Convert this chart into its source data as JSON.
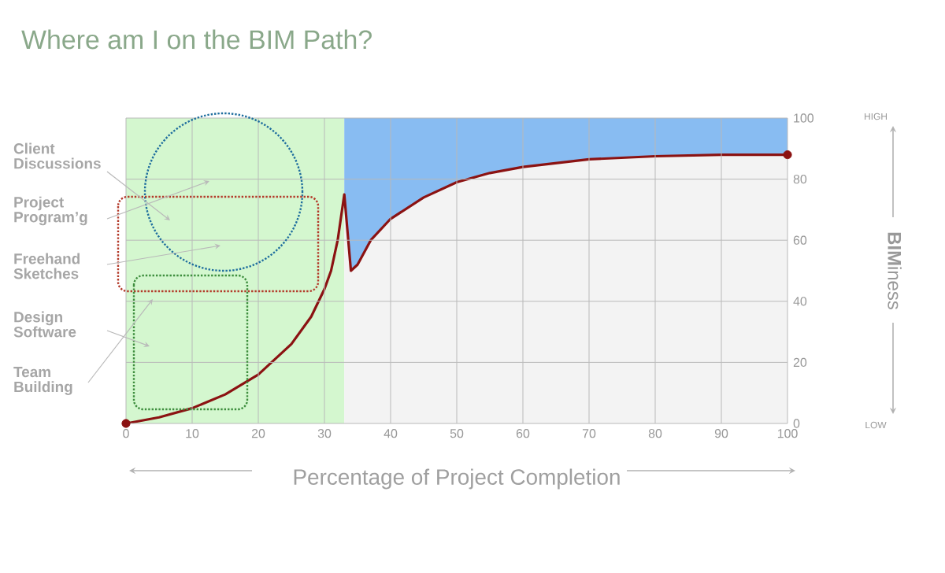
{
  "chart_data": {
    "type": "line",
    "title": "Where am I on the BIM Path?",
    "xlabel": "Percentage of Project Completion",
    "ylabel": "**BIM**iness",
    "xlim": [
      0,
      100
    ],
    "xticks": [
      0,
      10,
      20,
      30,
      40,
      50,
      60,
      70,
      80,
      90,
      100
    ],
    "ylim": [
      0,
      100
    ],
    "yticks": [
      0,
      20,
      40,
      60,
      80,
      100
    ],
    "grid": true,
    "stacked": true,
    "series": [
      {
        "type": "area",
        "color": "#f3f3f3",
        "x": [
          33,
          34,
          35,
          37,
          40,
          45,
          50,
          55,
          60,
          70,
          80,
          90,
          100
        ],
        "values": [
          75,
          50,
          52,
          60,
          67,
          74,
          79,
          82,
          84,
          86.5,
          87.5,
          88,
          88
        ]
      },
      {
        "type": "area",
        "color": "#88bcf2",
        "x": [
          33,
          34,
          35,
          37,
          40,
          45,
          50,
          55,
          60,
          70,
          80,
          90,
          100
        ],
        "values": [
          25,
          50,
          48,
          40,
          33,
          26,
          21,
          18,
          16,
          13.5,
          12.5,
          12,
          12
        ]
      },
      {
        "color": "#8b1212",
        "x": [
          0,
          5,
          10,
          15,
          20,
          25,
          28,
          30,
          31,
          32,
          33,
          34,
          35,
          37,
          40,
          45,
          50,
          55,
          60,
          70,
          80,
          90,
          100
        ],
        "values": [
          0,
          2,
          5,
          9.5,
          16,
          26,
          35,
          44,
          50,
          60,
          75,
          50,
          52,
          60,
          67,
          74,
          79,
          82,
          84,
          86.5,
          87.5,
          88,
          88
        ]
      },
      {
        "type": "scatter",
        "color": "#8b1212",
        "x": [
          0,
          100
        ],
        "values": [
          0,
          88
        ]
      }
    ],
    "bands": [
      {
        "axis": "x",
        "from": 0,
        "to": 33,
        "color": "#d4f7cf"
      }
    ],
    "annotations": [
      "Client Discussions",
      "Project Program’g",
      "Freehand Sketches",
      "Design Software",
      "Team Building",
      "HIGH",
      "LOW"
    ]
  }
}
